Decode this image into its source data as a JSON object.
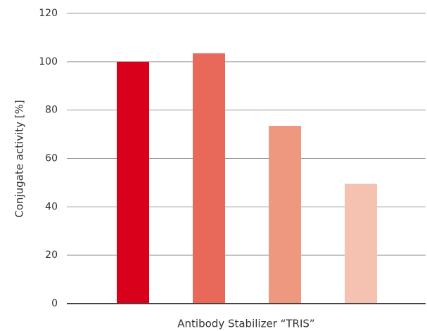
{
  "chart_data": {
    "type": "bar",
    "categories": [
      null,
      null,
      null,
      null
    ],
    "values": [
      100,
      103.5,
      73.5,
      49.5
    ],
    "colors": [
      "#d9001b",
      "#e8685a",
      "#ef9880",
      "#f5c2b1"
    ],
    "xlabel": "Antibody Stabilizer “TRIS”",
    "ylabel": "Conjugate activity [%]",
    "ylim": [
      0,
      120
    ],
    "yticks": [
      0,
      20,
      40,
      60,
      80,
      100,
      120
    ],
    "grid": true
  }
}
